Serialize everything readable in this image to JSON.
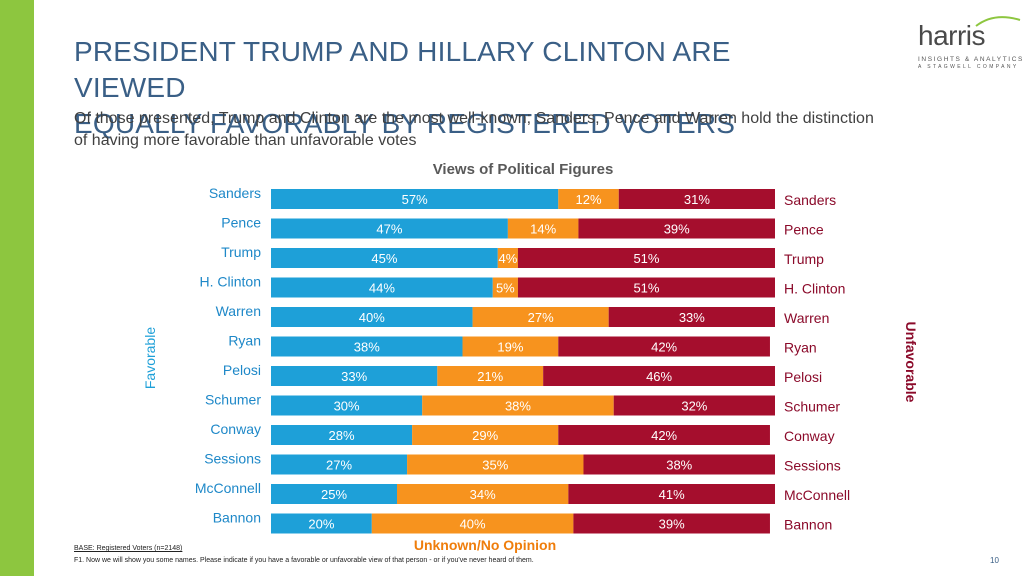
{
  "title_lines": [
    "PRESIDENT TRUMP AND HILLARY CLINTON ARE VIEWED",
    "EQUALLY FAVORABLY BY REGISTERED VOTERS"
  ],
  "subtitle_lines": [
    "Of those presented, Trump and Clinton are the most well-known; Sanders, Pence and Warren hold the distinction",
    "of having more favorable than unfavorable votes"
  ],
  "logo": {
    "word": "harris",
    "line1": "INSIGHTS & ANALYTICS",
    "line2": "A STAGWELL COMPANY"
  },
  "footnote": {
    "base": "BASE: Registered Voters (n=2148)",
    "question": "F1. Now we will show you some names. Please indicate if you have a favorable or unfavorable view of that person - or if you've never heard of them."
  },
  "page_number": "10",
  "colors": {
    "accent": "#8dc63f",
    "favorable": "#1ea0d8",
    "unknown": "#f7931e",
    "unfavorable": "#a50e2d",
    "title": "#3a5f86"
  },
  "chart_data": {
    "type": "bar",
    "orientation": "horizontal",
    "stacked": true,
    "title": "Views of Political Figures",
    "categories": [
      "Sanders",
      "Pence",
      "Trump",
      "H. Clinton",
      "Warren",
      "Ryan",
      "Pelosi",
      "Schumer",
      "Conway",
      "Sessions",
      "McConnell",
      "Bannon"
    ],
    "series": [
      {
        "name": "Favorable",
        "values": [
          57,
          47,
          45,
          44,
          40,
          38,
          33,
          30,
          28,
          27,
          25,
          20
        ]
      },
      {
        "name": "Unknown/No Opinion",
        "values": [
          12,
          14,
          4,
          5,
          27,
          19,
          21,
          38,
          29,
          35,
          34,
          40
        ]
      },
      {
        "name": "Unfavorable",
        "values": [
          31,
          39,
          51,
          51,
          33,
          42,
          46,
          32,
          42,
          38,
          41,
          39
        ]
      }
    ],
    "axis_left_label": "Favorable",
    "axis_right_label": "Unfavorable",
    "middle_legend_label": "Unknown/No Opinion",
    "xlim": [
      0,
      100
    ],
    "value_suffix": "%"
  }
}
